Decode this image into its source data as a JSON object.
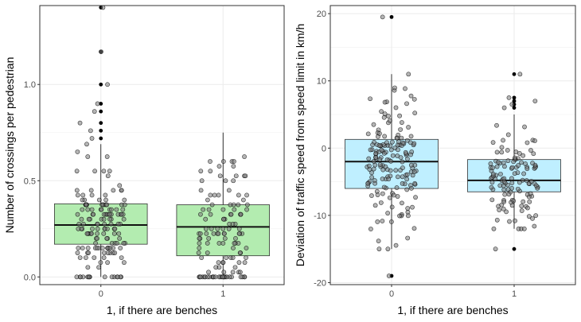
{
  "chart_data": [
    {
      "type": "boxplot",
      "xlabel": "1, if there are benches",
      "ylabel": "Number of crossings per pedestrian",
      "categories": [
        "0",
        "1"
      ],
      "ylim": [
        -0.04,
        1.41
      ],
      "yticks": [
        0.0,
        0.5,
        1.0
      ],
      "ytick_labels": [
        "0.0",
        "0.5",
        "1.0"
      ],
      "box_color": "#b3ecb0",
      "grid": true,
      "boxes": [
        {
          "category": "0",
          "whisker_low": 0.0,
          "q1": 0.17,
          "median": 0.27,
          "q3": 0.38,
          "whisker_high": 0.69,
          "outliers": [
            0.72,
            0.76,
            0.8,
            0.86,
            0.9,
            1.0,
            1.17,
            1.4
          ]
        },
        {
          "category": "1",
          "whisker_low": 0.0,
          "q1": 0.11,
          "median": 0.26,
          "q3": 0.375,
          "whisker_high": 0.75,
          "outliers": []
        }
      ],
      "jitter_count": [
        150,
        130
      ]
    },
    {
      "type": "boxplot",
      "xlabel": "1, if there are benches",
      "ylabel": "Deviation of traffic speed from speed limit in km/h",
      "categories": [
        "0",
        "1"
      ],
      "ylim": [
        -20.3,
        21.2
      ],
      "yticks": [
        -20,
        -10,
        0,
        10,
        20
      ],
      "ytick_labels": [
        "-20",
        "-10",
        "0",
        "10",
        "20"
      ],
      "box_color": "#bfefff",
      "grid": true,
      "boxes": [
        {
          "category": "0",
          "whisker_low": -15,
          "q1": -6,
          "median": -2,
          "q3": 1.3,
          "whisker_high": 11,
          "outliers": [
            -19,
            19.5
          ]
        },
        {
          "category": "1",
          "whisker_low": -12,
          "q1": -6.5,
          "median": -4.8,
          "q3": -1.7,
          "whisker_high": 5,
          "outliers": [
            6,
            6.5,
            7,
            7.5,
            11,
            -15
          ]
        }
      ],
      "jitter_count": [
        170,
        120
      ]
    }
  ]
}
